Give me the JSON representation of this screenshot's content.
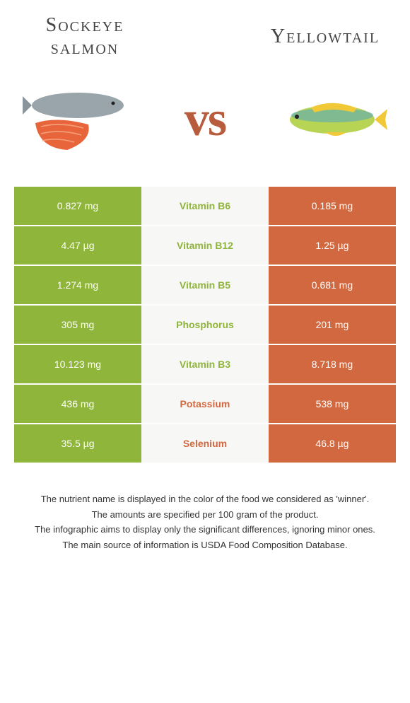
{
  "header": {
    "left_title": "Sockeye salmon",
    "right_title": "Yellowtail",
    "vs_label": "vs"
  },
  "colors": {
    "green": "#8fb53a",
    "orange": "#d2683f",
    "mid_bg": "#f7f7f5",
    "vs_color": "#b85c3e"
  },
  "nutrients": [
    {
      "name": "Vitamin B6",
      "left": "0.827 mg",
      "right": "0.185 mg",
      "winner": "left"
    },
    {
      "name": "Vitamin B12",
      "left": "4.47 µg",
      "right": "1.25 µg",
      "winner": "left"
    },
    {
      "name": "Vitamin B5",
      "left": "1.274 mg",
      "right": "0.681 mg",
      "winner": "left"
    },
    {
      "name": "Phosphorus",
      "left": "305 mg",
      "right": "201 mg",
      "winner": "left"
    },
    {
      "name": "Vitamin B3",
      "left": "10.123 mg",
      "right": "8.718 mg",
      "winner": "left"
    },
    {
      "name": "Potassium",
      "left": "436 mg",
      "right": "538 mg",
      "winner": "right"
    },
    {
      "name": "Selenium",
      "left": "35.5 µg",
      "right": "46.8 µg",
      "winner": "right"
    }
  ],
  "footer": {
    "line1": "The nutrient name is displayed in the color of the food we considered as 'winner'.",
    "line2": "The amounts are specified per 100 gram of the product.",
    "line3": "The infographic aims to display only the significant differences, ignoring minor ones.",
    "line4": "The main source of information is USDA Food Composition Database."
  }
}
